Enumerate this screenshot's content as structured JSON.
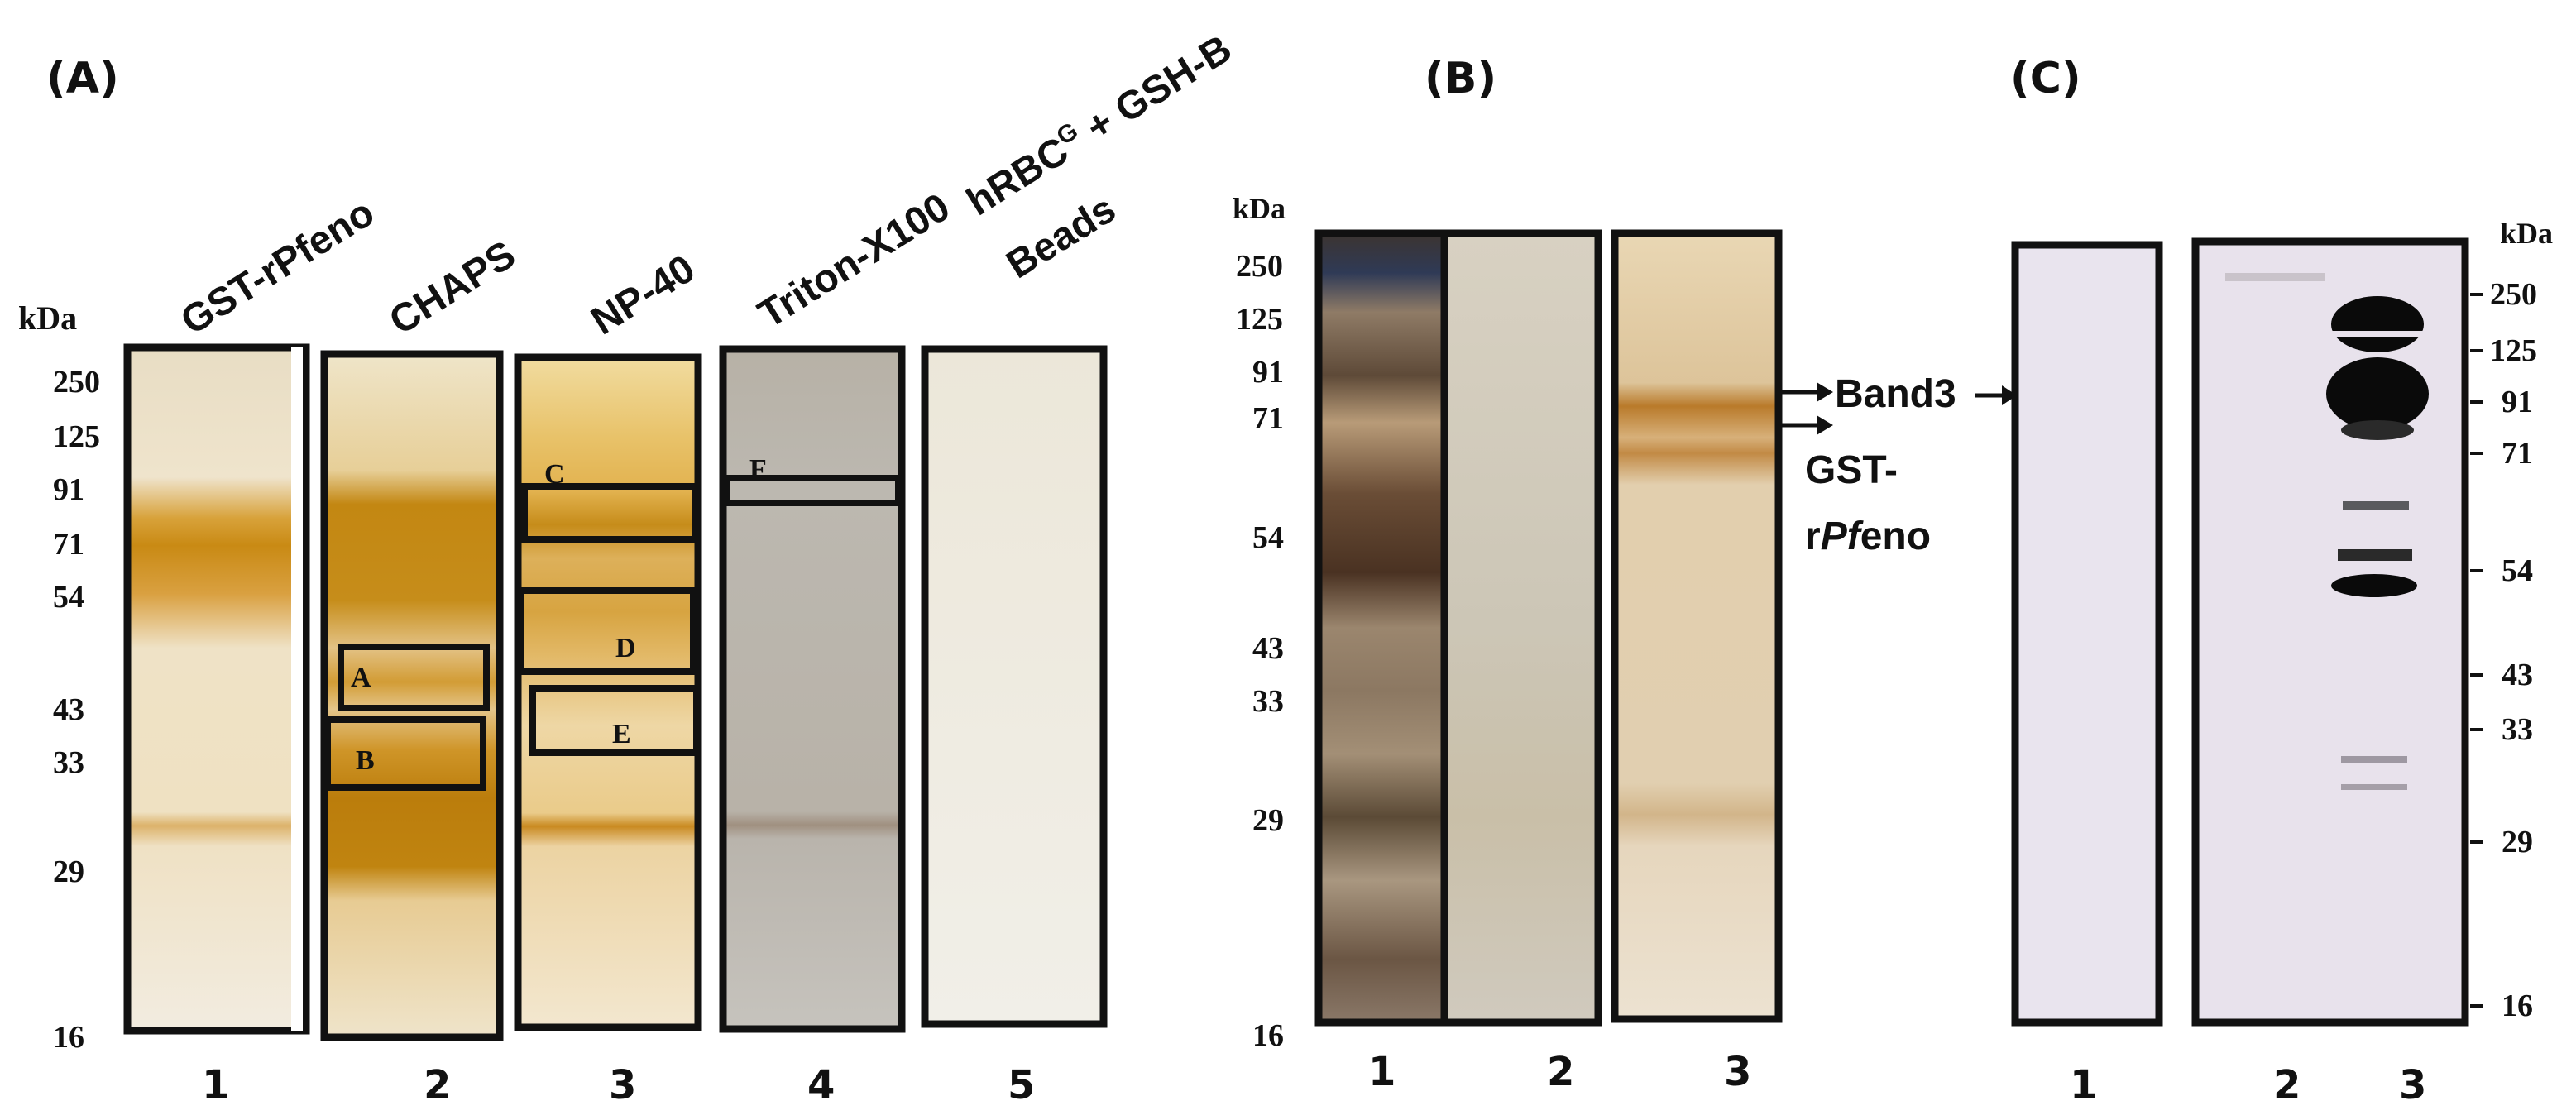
{
  "panels": {
    "a": {
      "label": "(A)",
      "unit": "kDa",
      "markers": [
        "250",
        "125",
        "91",
        "71",
        "54",
        "43",
        "33",
        "29",
        "16"
      ],
      "lane_titles": [
        "GST-rPfeno",
        "CHAPS",
        "NP-40",
        "Triton-X100"
      ],
      "lane_title_5a": "hRBC",
      "lane_title_5a_sup": "G",
      "lane_title_5a_tail": " + GSH-B",
      "lane_title_5b": "Beads",
      "lane_numbers": [
        "1",
        "2",
        "3",
        "4",
        "5"
      ],
      "box_labels": [
        "A",
        "B",
        "C",
        "D",
        "E",
        "F"
      ]
    },
    "b": {
      "label": "(B)",
      "unit": "kDa",
      "markers": [
        "250",
        "125",
        "91",
        "71",
        "54",
        "43",
        "33",
        "29",
        "16"
      ],
      "lane_numbers": [
        "1",
        "2",
        "3"
      ],
      "arrow_label_1": "Band3",
      "arrow_label_2a": "GST-",
      "arrow_label_2b_pre": "r",
      "arrow_label_2b_italic": "Pf",
      "arrow_label_2b_post": "eno"
    },
    "c": {
      "label": "(C)",
      "unit": "kDa",
      "markers": [
        "250",
        "125",
        "91",
        "71",
        "54",
        "43",
        "33",
        "29",
        "16"
      ],
      "lane_numbers": [
        "1",
        "2",
        "3"
      ]
    }
  },
  "colors": {
    "frame": "#111111",
    "silver_stain_band": "#c98a14",
    "gel_background": "#efe8d6",
    "blot_background": "#e9e4ee",
    "blot_band": "#0a0a0a"
  }
}
